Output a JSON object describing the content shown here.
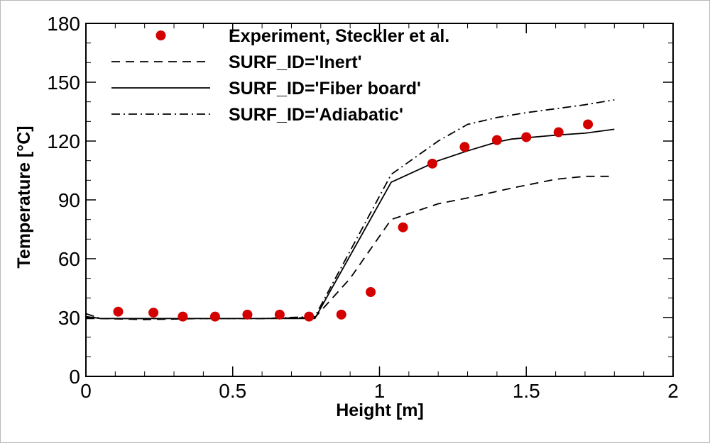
{
  "chart_data": {
    "type": "line",
    "xlabel": "Height [m]",
    "ylabel": "Temperature [°C]",
    "xlim": [
      0,
      2
    ],
    "ylim": [
      0,
      180
    ],
    "xticks": [
      0,
      0.5,
      1,
      1.5,
      2
    ],
    "xtick_labels": [
      "0",
      "0.5",
      "1",
      "1.5",
      "2"
    ],
    "yticks": [
      0,
      30,
      60,
      90,
      120,
      150,
      180
    ],
    "ytick_labels": [
      "0",
      "30",
      "60",
      "90",
      "120",
      "150",
      "180"
    ],
    "legend_position": "top-left",
    "grid": false,
    "series": [
      {
        "name": "Experiment, Steckler et al.",
        "style": "markers",
        "color": "#d40000",
        "x": [
          0.11,
          0.23,
          0.33,
          0.44,
          0.55,
          0.66,
          0.76,
          0.87,
          0.97,
          1.08,
          1.18,
          1.29,
          1.4,
          1.5,
          1.61,
          1.71
        ],
        "y": [
          33,
          32.5,
          30.5,
          30.5,
          31.5,
          31.5,
          30.5,
          31.5,
          43,
          76,
          108.5,
          117,
          120.5,
          122,
          124.5,
          128.5
        ]
      },
      {
        "name": "SURF_ID='Inert'",
        "style": "dashed",
        "color": "#000000",
        "x": [
          0,
          0.05,
          0.2,
          0.4,
          0.6,
          0.78,
          0.9,
          1.04,
          1.2,
          1.3,
          1.45,
          1.6,
          1.7,
          1.8
        ],
        "y": [
          29.5,
          29.5,
          29,
          29.5,
          29.5,
          30,
          50,
          80,
          88,
          91,
          96,
          100.5,
          102,
          102
        ]
      },
      {
        "name": "SURF_ID='Fiber board'",
        "style": "solid",
        "color": "#000000",
        "x": [
          0,
          0.05,
          0.2,
          0.4,
          0.6,
          0.78,
          1.04,
          1.2,
          1.3,
          1.4,
          1.45,
          1.6,
          1.7,
          1.8
        ],
        "y": [
          30.5,
          29.5,
          29.5,
          29.5,
          29.5,
          29.5,
          99,
          110,
          115,
          119.5,
          121,
          123,
          124,
          126
        ]
      },
      {
        "name": "SURF_ID='Adiabatic'",
        "style": "dashdot",
        "color": "#000000",
        "x": [
          0,
          0.05,
          0.2,
          0.4,
          0.6,
          0.78,
          1.04,
          1.2,
          1.3,
          1.4,
          1.5,
          1.6,
          1.7,
          1.8
        ],
        "y": [
          32,
          29.5,
          29.5,
          29.5,
          29.5,
          30.5,
          103,
          120,
          128.5,
          132,
          134.5,
          136.5,
          138.5,
          141
        ]
      }
    ]
  }
}
